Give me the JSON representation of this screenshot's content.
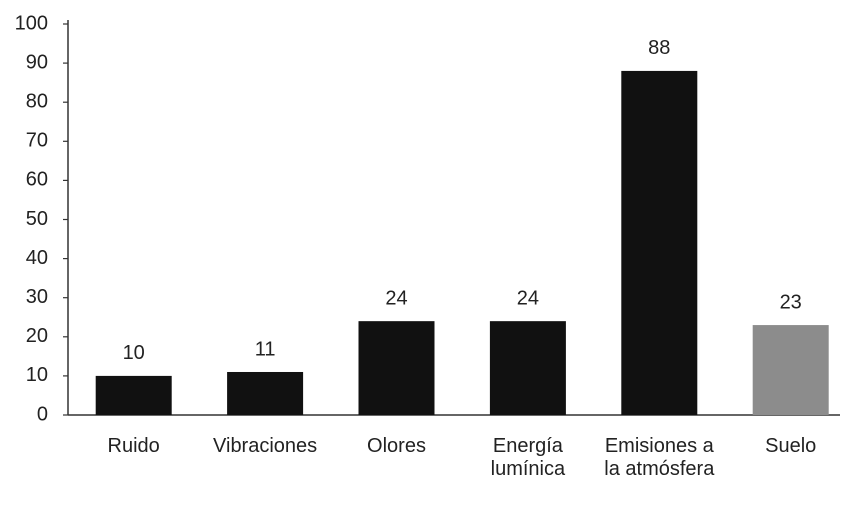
{
  "chart_data": {
    "type": "bar",
    "categories": [
      "Ruido",
      "Vibraciones",
      "Olores",
      "Energía lumínica",
      "Emisiones a la atmósfera",
      "Suelo"
    ],
    "values": [
      10,
      11,
      24,
      24,
      88,
      23
    ],
    "colors": [
      "#111111",
      "#111111",
      "#111111",
      "#111111",
      "#111111",
      "#8c8c8c"
    ],
    "ylim": [
      0,
      100
    ],
    "yticks": [
      0,
      10,
      20,
      30,
      40,
      50,
      60,
      70,
      80,
      90,
      100
    ],
    "grid": false
  }
}
